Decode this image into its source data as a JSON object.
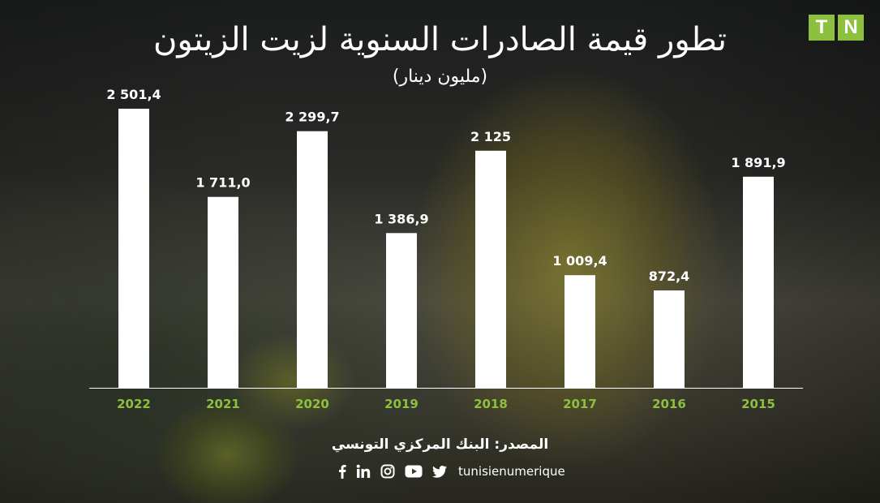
{
  "brand": {
    "logo_letters": [
      "T",
      "N"
    ],
    "logo_color": "#8dc03f"
  },
  "title": "تطور قيمة الصادرات السنوية لزيت الزيتون",
  "subtitle": "(مليون دينار)",
  "source": "المصدر: البنك المركزي التونسي",
  "social": {
    "icons": [
      "facebook-icon",
      "linkedin-icon",
      "instagram-icon",
      "youtube-icon",
      "twitter-icon"
    ],
    "handle": "tunisienumerique"
  },
  "chart_data": {
    "type": "bar",
    "categories": [
      "2022",
      "2021",
      "2020",
      "2019",
      "2018",
      "2017",
      "2016",
      "2015"
    ],
    "values": [
      2501.4,
      1711.0,
      2299.7,
      1386.9,
      2125,
      1009.4,
      872.4,
      1891.9
    ],
    "data_labels": [
      "2 501,4",
      "1 711,0",
      "2 299,7",
      "1 386,9",
      "2 125",
      "1 009,4",
      "872,4",
      "1 891,9"
    ],
    "title": "تطور قيمة الصادرات السنوية لزيت الزيتون",
    "subtitle": "(مليون دينار)",
    "ylim": [
      0,
      2501.4
    ],
    "grid": false,
    "bar_color": "#ffffff",
    "category_label_color": "#8dc03f",
    "value_label_color": "#ffffff"
  }
}
